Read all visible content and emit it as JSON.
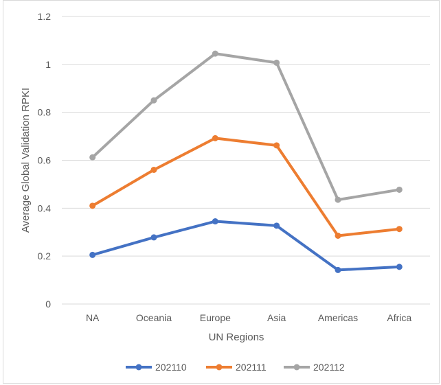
{
  "chart_data": {
    "type": "line",
    "title": "",
    "xlabel": "UN Regions",
    "ylabel": "Average Global Validation RPKI",
    "categories": [
      "NA",
      "Oceania",
      "Europe",
      "Asia",
      "Americas",
      "Africa"
    ],
    "ylim": [
      0,
      1.2
    ],
    "yticks": [
      0,
      0.2,
      0.4,
      0.6,
      0.8,
      1,
      1.2
    ],
    "ytick_labels": [
      "0",
      "0.2",
      "0.4",
      "0.6",
      "0.8",
      "1",
      "1.2"
    ],
    "grid": true,
    "legend_position": "bottom",
    "series": [
      {
        "name": "202110",
        "color": "#4472c4",
        "values": [
          0.205,
          0.278,
          0.345,
          0.327,
          0.142,
          0.155
        ]
      },
      {
        "name": "202111",
        "color": "#ed7d31",
        "values": [
          0.41,
          0.56,
          0.692,
          0.662,
          0.285,
          0.313
        ]
      },
      {
        "name": "202112",
        "color": "#a5a5a5",
        "values": [
          0.612,
          0.85,
          1.045,
          1.007,
          0.435,
          0.477
        ]
      }
    ]
  }
}
